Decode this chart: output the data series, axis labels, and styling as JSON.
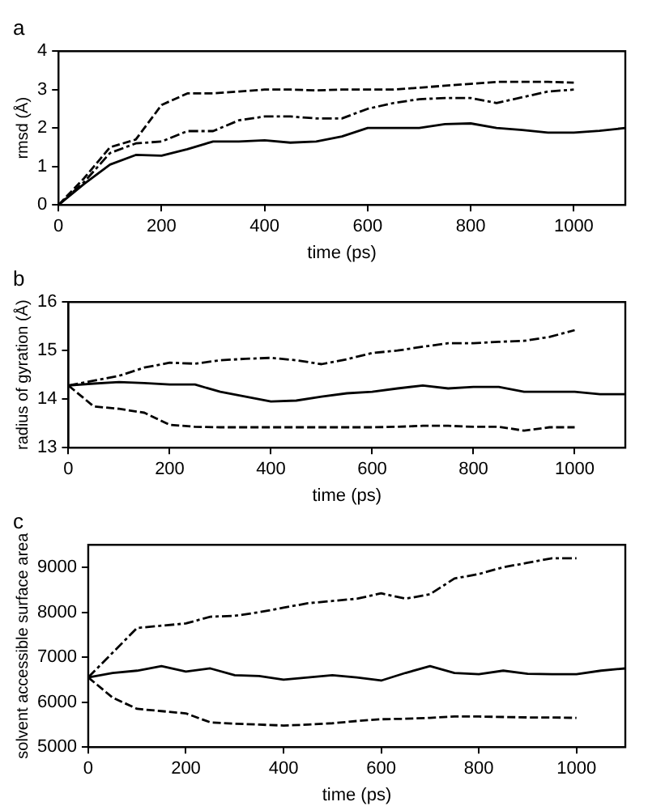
{
  "chart_data": [
    {
      "type": "line",
      "title": "a",
      "xlabel": "time (ps)",
      "ylabel": "rmsd (Å)",
      "xlim": [
        0,
        1100
      ],
      "xticks": [
        0,
        200,
        400,
        600,
        800,
        1000
      ],
      "ylim": [
        0,
        4
      ],
      "yticks": [
        0,
        1,
        2,
        3,
        4
      ],
      "grid": false,
      "legend": false,
      "x": [
        0,
        50,
        100,
        150,
        200,
        250,
        300,
        350,
        400,
        450,
        500,
        550,
        600,
        650,
        700,
        750,
        800,
        850,
        900,
        950,
        1000,
        1050,
        1100
      ],
      "series": [
        {
          "color": "#000000",
          "line_style": "solid",
          "values": [
            0,
            0.55,
            1.05,
            1.3,
            1.28,
            1.45,
            1.65,
            1.65,
            1.68,
            1.62,
            1.65,
            1.78,
            2.0,
            2.0,
            2.0,
            2.1,
            2.12,
            2.0,
            1.95,
            1.88,
            1.88,
            1.93,
            2.0
          ]
        },
        {
          "color": "#000000",
          "line_style": "dashed",
          "values": [
            0,
            0.7,
            1.5,
            1.7,
            2.6,
            2.9,
            2.9,
            2.95,
            3.0,
            3.0,
            2.98,
            3.0,
            3.0,
            3.0,
            3.05,
            3.1,
            3.15,
            3.2,
            3.2,
            3.2,
            3.18,
            null,
            null
          ]
        },
        {
          "color": "#000000",
          "line_style": "dashdot",
          "values": [
            0,
            0.6,
            1.35,
            1.6,
            1.65,
            1.92,
            1.92,
            2.2,
            2.3,
            2.3,
            2.25,
            2.25,
            2.5,
            2.65,
            2.75,
            2.78,
            2.78,
            2.65,
            2.8,
            2.95,
            3.0,
            null,
            null
          ]
        }
      ]
    },
    {
      "type": "line",
      "title": "b",
      "xlabel": "time (ps)",
      "ylabel": "radius of gyration (Å)",
      "xlim": [
        0,
        1100
      ],
      "xticks": [
        0,
        200,
        400,
        600,
        800,
        1000
      ],
      "ylim": [
        13,
        16
      ],
      "yticks": [
        13,
        14,
        15,
        16
      ],
      "grid": false,
      "legend": false,
      "x": [
        0,
        50,
        100,
        150,
        200,
        250,
        300,
        350,
        400,
        450,
        500,
        550,
        600,
        650,
        700,
        750,
        800,
        850,
        900,
        950,
        1000,
        1050,
        1100
      ],
      "series": [
        {
          "color": "#000000",
          "line_style": "solid",
          "values": [
            14.28,
            14.32,
            14.35,
            14.33,
            14.3,
            14.3,
            14.15,
            14.05,
            13.95,
            13.97,
            14.05,
            14.12,
            14.15,
            14.22,
            14.28,
            14.22,
            14.25,
            14.25,
            14.15,
            14.15,
            14.15,
            14.1,
            14.1
          ]
        },
        {
          "color": "#000000",
          "line_style": "dashed",
          "values": [
            14.28,
            13.85,
            13.8,
            13.72,
            13.47,
            13.43,
            13.42,
            13.42,
            13.42,
            13.42,
            13.42,
            13.42,
            13.42,
            13.43,
            13.45,
            13.45,
            13.43,
            13.43,
            13.35,
            13.42,
            13.42,
            null,
            null
          ]
        },
        {
          "color": "#000000",
          "line_style": "dashdot",
          "values": [
            14.28,
            14.38,
            14.48,
            14.65,
            14.75,
            14.73,
            14.8,
            14.83,
            14.85,
            14.8,
            14.72,
            14.82,
            14.95,
            15.0,
            15.08,
            15.15,
            15.15,
            15.18,
            15.2,
            15.28,
            15.42,
            null,
            null
          ]
        }
      ]
    },
    {
      "type": "line",
      "title": "c",
      "xlabel": "time (ps)",
      "ylabel": "solvent accessible surface area",
      "xlim": [
        0,
        1100
      ],
      "xticks": [
        0,
        200,
        400,
        600,
        800,
        1000
      ],
      "ylim": [
        5000,
        9500
      ],
      "yticks": [
        5000,
        6000,
        7000,
        8000,
        9000
      ],
      "grid": false,
      "legend": false,
      "x": [
        0,
        50,
        100,
        150,
        200,
        250,
        300,
        350,
        400,
        450,
        500,
        550,
        600,
        650,
        700,
        750,
        800,
        850,
        900,
        950,
        1000,
        1050,
        1100
      ],
      "series": [
        {
          "color": "#000000",
          "line_style": "solid",
          "values": [
            6550,
            6650,
            6700,
            6800,
            6680,
            6750,
            6600,
            6580,
            6500,
            6550,
            6600,
            6550,
            6480,
            6650,
            6800,
            6650,
            6620,
            6700,
            6630,
            6620,
            6620,
            6700,
            6750
          ]
        },
        {
          "color": "#000000",
          "line_style": "dashed",
          "values": [
            6550,
            6100,
            5850,
            5800,
            5750,
            5550,
            5520,
            5500,
            5480,
            5500,
            5530,
            5580,
            5620,
            5630,
            5650,
            5680,
            5680,
            5670,
            5660,
            5660,
            5650,
            null,
            null
          ]
        },
        {
          "color": "#000000",
          "line_style": "dashdot",
          "values": [
            6550,
            7100,
            7650,
            7700,
            7750,
            7900,
            7920,
            8000,
            8100,
            8200,
            8250,
            8300,
            8420,
            8300,
            8400,
            8750,
            8850,
            9000,
            9100,
            9200,
            9200,
            null,
            null
          ]
        }
      ]
    }
  ]
}
